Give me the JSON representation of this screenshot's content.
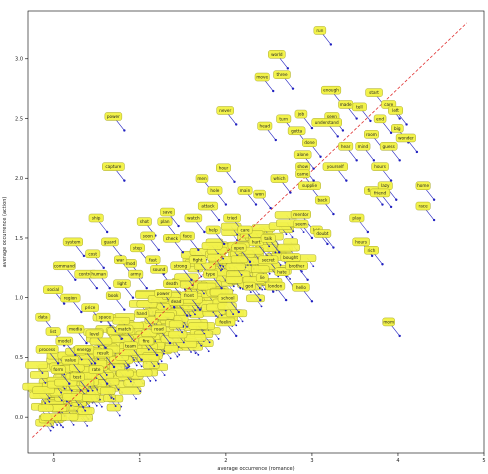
{
  "chart_data": {
    "type": "scatter",
    "title": "",
    "xlabel": "average occurrence (romance)",
    "ylabel": "average occurrence (action)",
    "xlim": [
      -0.3,
      5.0
    ],
    "ylim": [
      -0.3,
      3.4
    ],
    "xticks": [
      0,
      1,
      2,
      3,
      4,
      5
    ],
    "yticks": [
      0.0,
      0.5,
      1.0,
      1.5,
      2.0,
      2.5,
      3.0
    ],
    "ytick_labels": [
      "0.0",
      "0.5",
      "1.0",
      "1.5",
      "2.0",
      "2.5",
      "3.0"
    ],
    "diagonal": {
      "x": [
        -0.25,
        4.8
      ],
      "y": [
        -0.17,
        3.3
      ],
      "style": "dashed",
      "color": "#e03030"
    },
    "grid": false,
    "colors": {
      "label_fill": "#f2f24a",
      "label_stroke": "#a8a830",
      "arrow": "#2020c0",
      "point": "#2020c0"
    },
    "labeled_points": [
      {
        "word": "run",
        "x": 3.22,
        "y": 3.12
      },
      {
        "word": "world",
        "x": 2.72,
        "y": 2.92
      },
      {
        "word": "move",
        "x": 2.55,
        "y": 2.73
      },
      {
        "word": "three",
        "x": 2.78,
        "y": 2.75
      },
      {
        "word": "enough",
        "x": 3.35,
        "y": 2.62
      },
      {
        "word": "start",
        "x": 3.85,
        "y": 2.6
      },
      {
        "word": "care",
        "x": 4.02,
        "y": 2.5
      },
      {
        "word": "tell",
        "x": 3.68,
        "y": 2.48
      },
      {
        "word": "made",
        "x": 3.52,
        "y": 2.5
      },
      {
        "word": "end",
        "x": 3.92,
        "y": 2.38
      },
      {
        "word": "seen",
        "x": 3.36,
        "y": 2.4
      },
      {
        "word": "understand",
        "x": 3.3,
        "y": 2.35
      },
      {
        "word": "left",
        "x": 4.1,
        "y": 2.45
      },
      {
        "word": "never",
        "x": 2.12,
        "y": 2.45
      },
      {
        "word": "turn",
        "x": 2.8,
        "y": 2.38
      },
      {
        "word": "job",
        "x": 3.0,
        "y": 2.42
      },
      {
        "word": "head",
        "x": 2.58,
        "y": 2.32
      },
      {
        "word": "gotta",
        "x": 2.95,
        "y": 2.28
      },
      {
        "word": "room",
        "x": 3.82,
        "y": 2.25
      },
      {
        "word": "big",
        "x": 4.12,
        "y": 2.3
      },
      {
        "word": "wonder",
        "x": 4.22,
        "y": 2.22
      },
      {
        "word": "mind",
        "x": 3.72,
        "y": 2.15
      },
      {
        "word": "guess",
        "x": 4.02,
        "y": 2.15
      },
      {
        "word": "hear",
        "x": 3.52,
        "y": 2.15
      },
      {
        "word": "done",
        "x": 3.1,
        "y": 2.18
      },
      {
        "word": "alone",
        "x": 3.02,
        "y": 2.08
      },
      {
        "word": "power",
        "x": 0.82,
        "y": 2.4
      },
      {
        "word": "hour",
        "x": 2.1,
        "y": 1.97
      },
      {
        "word": "show",
        "x": 3.02,
        "y": 1.98
      },
      {
        "word": "came",
        "x": 3.02,
        "y": 1.92
      },
      {
        "word": "yourself",
        "x": 3.4,
        "y": 1.98
      },
      {
        "word": "hours",
        "x": 3.92,
        "y": 1.98
      },
      {
        "word": "capture",
        "x": 0.82,
        "y": 1.98
      },
      {
        "word": "men",
        "x": 1.85,
        "y": 1.88
      },
      {
        "word": "which",
        "x": 2.75,
        "y": 1.88
      },
      {
        "word": "supplie",
        "x": 3.1,
        "y": 1.82
      },
      {
        "word": "lazy",
        "x": 3.98,
        "y": 1.82
      },
      {
        "word": "home",
        "x": 4.42,
        "y": 1.82
      },
      {
        "word": "hole",
        "x": 2.0,
        "y": 1.78
      },
      {
        "word": "main",
        "x": 2.35,
        "y": 1.78
      },
      {
        "word": "fine",
        "x": 3.82,
        "y": 1.78
      },
      {
        "word": "friend",
        "x": 3.92,
        "y": 1.76
      },
      {
        "word": "won",
        "x": 2.52,
        "y": 1.75
      },
      {
        "word": "race",
        "x": 4.42,
        "y": 1.65
      },
      {
        "word": "back",
        "x": 3.25,
        "y": 1.7
      },
      {
        "word": "play",
        "x": 3.65,
        "y": 1.55
      },
      {
        "word": "ship",
        "x": 0.62,
        "y": 1.55
      },
      {
        "word": "shot",
        "x": 1.18,
        "y": 1.52
      },
      {
        "word": "plan",
        "x": 1.42,
        "y": 1.52
      },
      {
        "word": "save",
        "x": 1.45,
        "y": 1.6
      },
      {
        "word": "mentor",
        "x": 3.0,
        "y": 1.58
      },
      {
        "word": "seem",
        "x": 3.0,
        "y": 1.5
      },
      {
        "word": "kid",
        "x": 3.18,
        "y": 1.45
      },
      {
        "word": "doubt",
        "x": 3.25,
        "y": 1.42
      },
      {
        "word": "system",
        "x": 0.35,
        "y": 1.35
      },
      {
        "word": "hours",
        "x": 3.7,
        "y": 1.35
      },
      {
        "word": "rich",
        "x": 3.82,
        "y": 1.28
      },
      {
        "word": "cost",
        "x": 0.58,
        "y": 1.25
      },
      {
        "word": "command",
        "x": 0.25,
        "y": 1.15
      },
      {
        "word": "control",
        "x": 0.5,
        "y": 1.08
      },
      {
        "word": "human",
        "x": 0.65,
        "y": 1.08
      },
      {
        "word": "mod",
        "x": 1.02,
        "y": 1.17
      },
      {
        "word": "bought",
        "x": 2.88,
        "y": 1.22
      },
      {
        "word": "secret",
        "x": 2.62,
        "y": 1.2
      },
      {
        "word": "hate",
        "x": 2.78,
        "y": 1.1
      },
      {
        "word": "brother",
        "x": 2.95,
        "y": 1.15
      },
      {
        "word": "lie",
        "x": 2.55,
        "y": 1.05
      },
      {
        "word": "god",
        "x": 2.4,
        "y": 0.98
      },
      {
        "word": "london",
        "x": 2.7,
        "y": 0.98
      },
      {
        "word": "hello",
        "x": 3.0,
        "y": 0.97
      },
      {
        "word": "school",
        "x": 2.15,
        "y": 0.88
      },
      {
        "word": "social",
        "x": 0.12,
        "y": 0.95
      },
      {
        "word": "region",
        "x": 0.32,
        "y": 0.88
      },
      {
        "word": "feelin",
        "x": 2.12,
        "y": 0.68
      },
      {
        "word": "mom",
        "x": 4.02,
        "y": 0.68
      },
      {
        "word": "dead",
        "x": 1.55,
        "y": 0.85
      },
      {
        "word": "front",
        "x": 1.7,
        "y": 0.9
      },
      {
        "word": "data",
        "x": 0.0,
        "y": 0.72
      },
      {
        "word": "death",
        "x": 1.5,
        "y": 1.0
      },
      {
        "word": "check",
        "x": 1.5,
        "y": 1.38
      },
      {
        "word": "fast",
        "x": 1.28,
        "y": 1.2
      },
      {
        "word": "sound",
        "x": 1.35,
        "y": 1.12
      },
      {
        "word": "type",
        "x": 1.95,
        "y": 1.08
      },
      {
        "word": "open",
        "x": 2.28,
        "y": 1.3
      },
      {
        "word": "hurt",
        "x": 2.48,
        "y": 1.35
      },
      {
        "word": "talk",
        "x": 2.62,
        "y": 1.38
      },
      {
        "word": "care",
        "x": 2.35,
        "y": 1.45
      },
      {
        "word": "tried",
        "x": 2.2,
        "y": 1.55
      },
      {
        "word": "watch",
        "x": 1.75,
        "y": 1.55
      },
      {
        "word": "attack",
        "x": 1.92,
        "y": 1.65
      },
      {
        "word": "help",
        "x": 1.98,
        "y": 1.45
      },
      {
        "word": "face",
        "x": 1.68,
        "y": 1.4
      },
      {
        "word": "soon",
        "x": 1.22,
        "y": 1.4
      },
      {
        "word": "step",
        "x": 1.1,
        "y": 1.3
      },
      {
        "word": "light",
        "x": 0.92,
        "y": 1.0
      },
      {
        "word": "book",
        "x": 0.82,
        "y": 0.9
      },
      {
        "word": "price",
        "x": 0.55,
        "y": 0.8
      },
      {
        "word": "space",
        "x": 0.72,
        "y": 0.72
      },
      {
        "word": "match",
        "x": 0.95,
        "y": 0.62
      },
      {
        "word": "level",
        "x": 0.6,
        "y": 0.58
      },
      {
        "word": "media",
        "x": 0.38,
        "y": 0.62
      },
      {
        "word": "model",
        "x": 0.25,
        "y": 0.52
      },
      {
        "word": "energy",
        "x": 0.48,
        "y": 0.45
      },
      {
        "word": "result",
        "x": 0.7,
        "y": 0.42
      },
      {
        "word": "value",
        "x": 0.32,
        "y": 0.36
      },
      {
        "word": "list",
        "x": 0.12,
        "y": 0.6
      },
      {
        "word": "process",
        "x": 0.05,
        "y": 0.45
      },
      {
        "word": "form",
        "x": 0.18,
        "y": 0.28
      },
      {
        "word": "test",
        "x": 0.4,
        "y": 0.22
      },
      {
        "word": "rate",
        "x": 0.62,
        "y": 0.28
      },
      {
        "word": "hand",
        "x": 1.15,
        "y": 0.75
      },
      {
        "word": "road",
        "x": 1.35,
        "y": 0.62
      },
      {
        "word": "fight",
        "x": 1.8,
        "y": 1.2
      },
      {
        "word": "strong",
        "x": 1.6,
        "y": 1.15
      },
      {
        "word": "power",
        "x": 1.4,
        "y": 0.92
      },
      {
        "word": "army",
        "x": 1.08,
        "y": 1.08
      },
      {
        "word": "war",
        "x": 0.9,
        "y": 1.2
      },
      {
        "word": "guard",
        "x": 0.78,
        "y": 1.35
      },
      {
        "word": "team",
        "x": 1.02,
        "y": 0.48
      },
      {
        "word": "fire",
        "x": 1.2,
        "y": 0.52
      }
    ],
    "unlabeled_points_visible": true
  }
}
